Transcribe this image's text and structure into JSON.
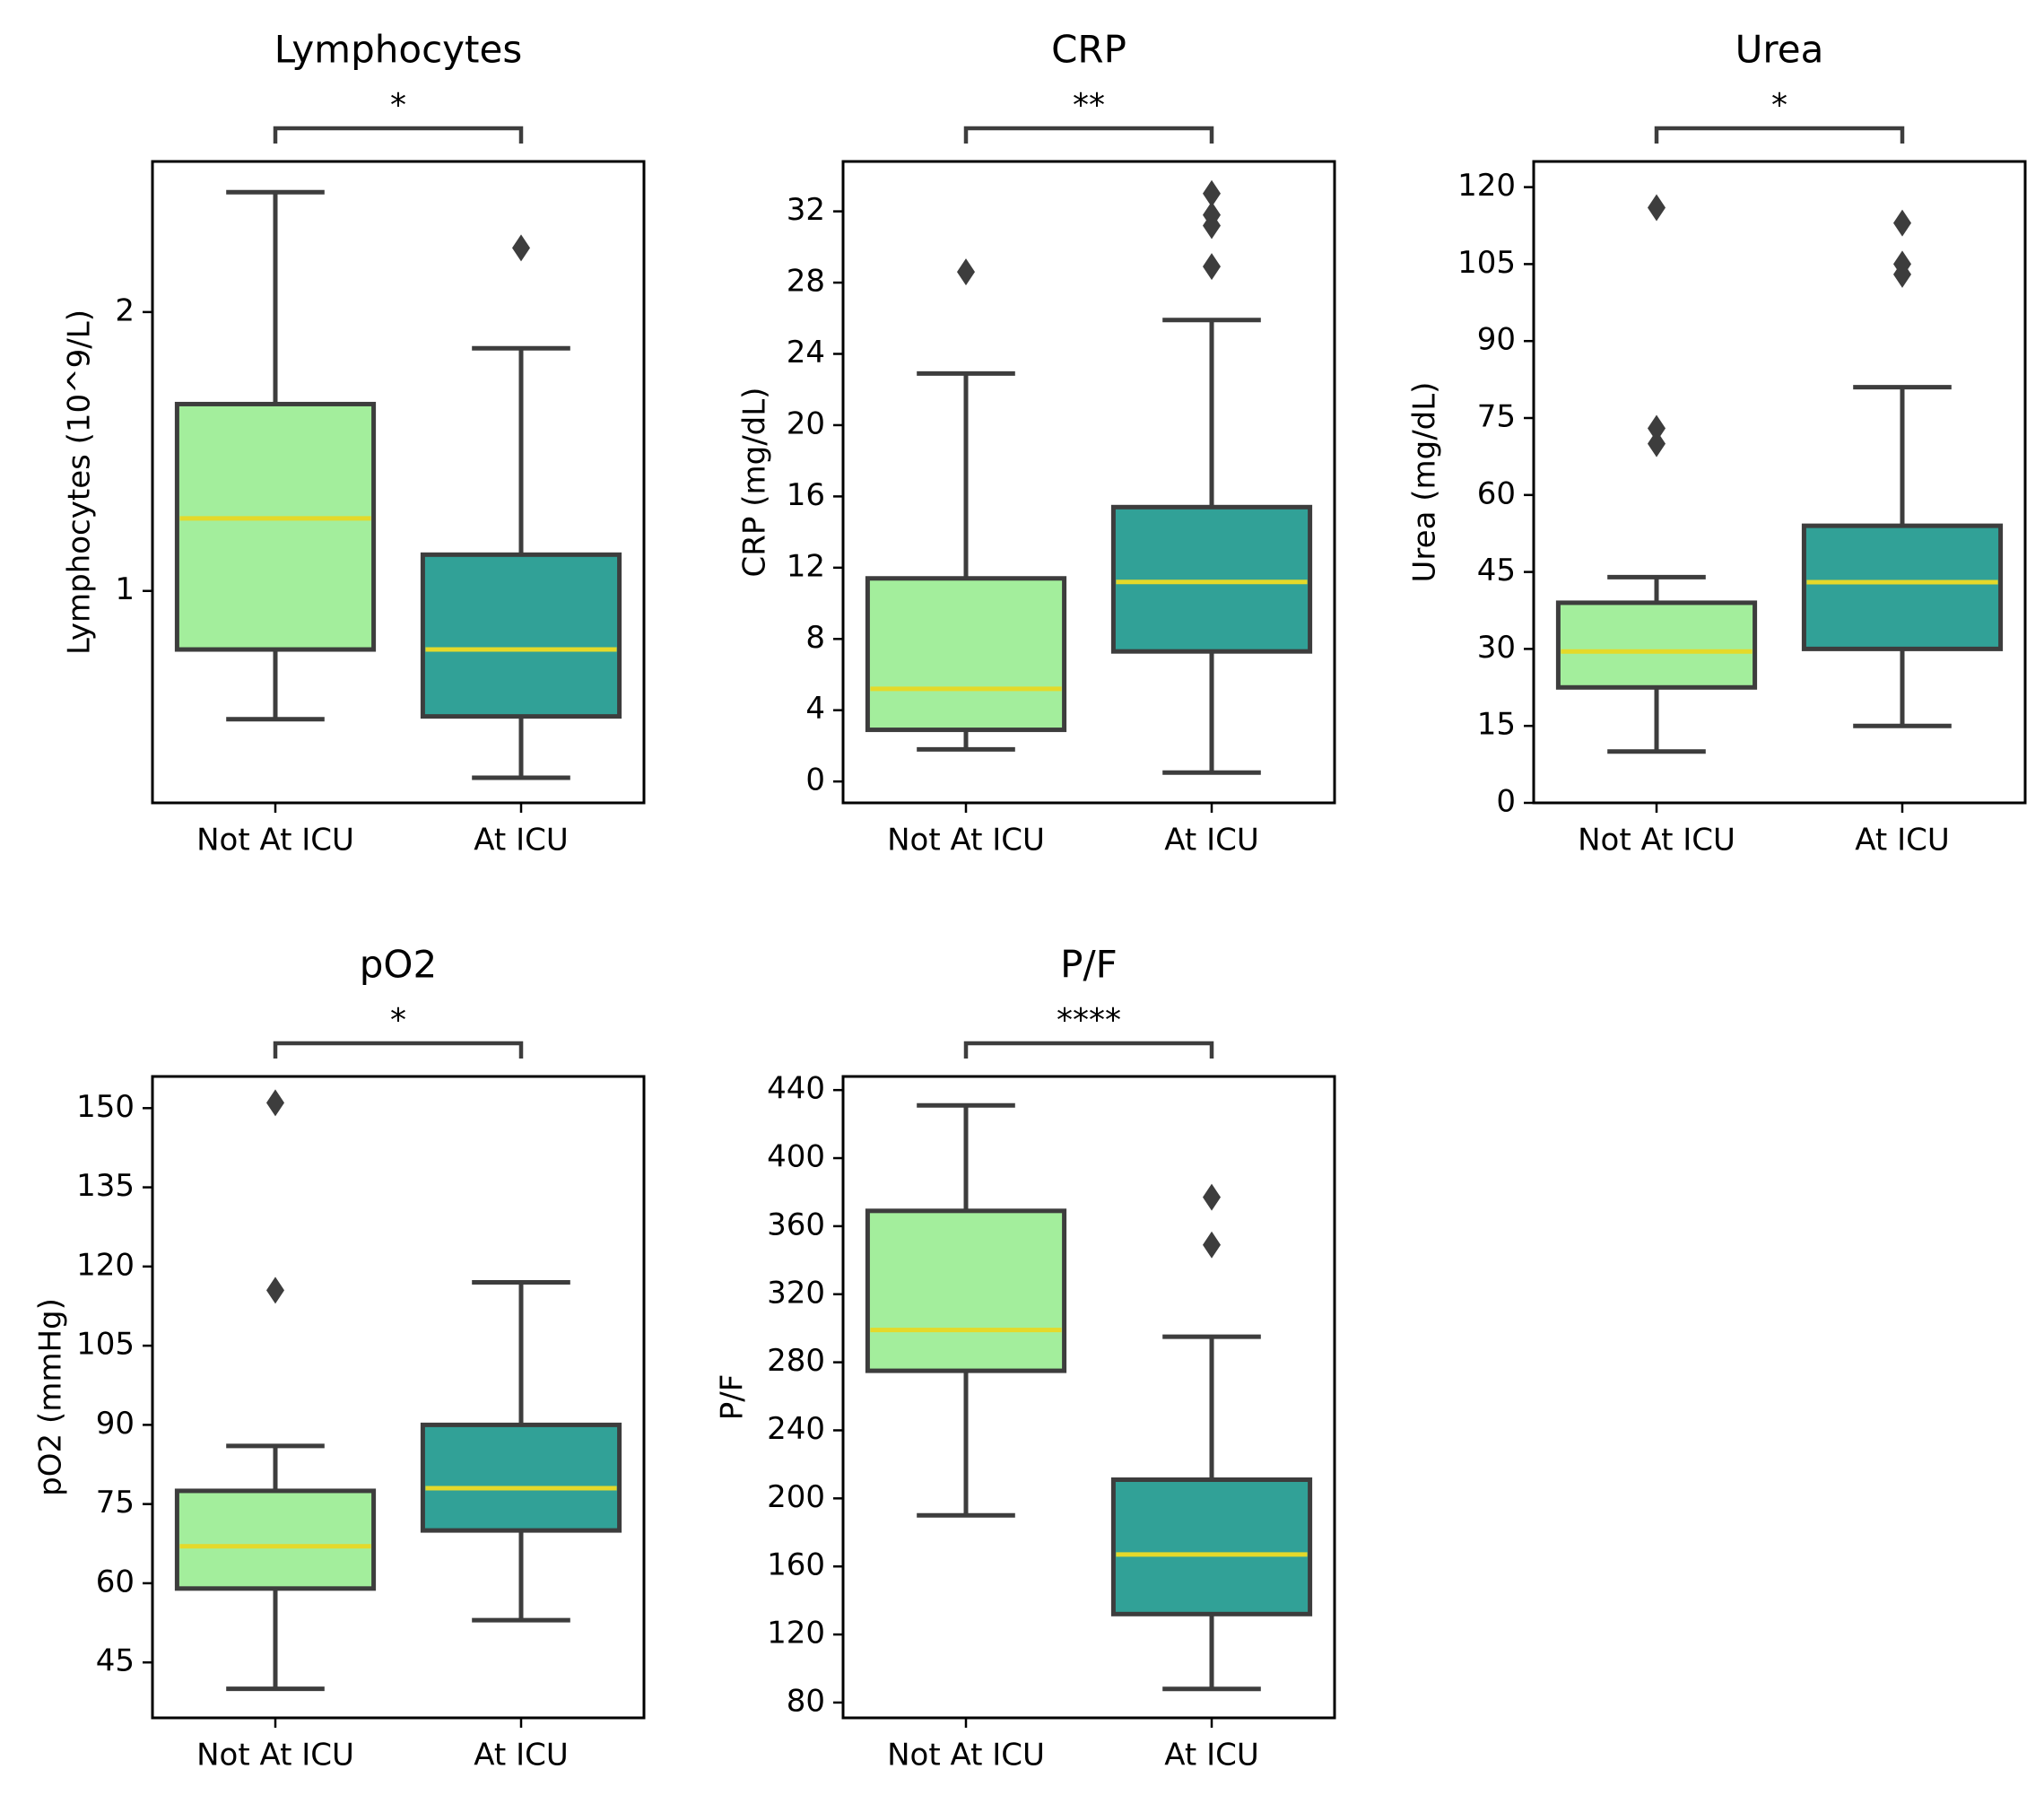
{
  "figure": {
    "colors": {
      "not_icu_box": "#a3ee9c",
      "icu_box": "#31a197",
      "median": "#e4d92a",
      "lines": "#3d3d3d"
    }
  },
  "chart_data": [
    {
      "type": "box",
      "title": "Lymphocytes",
      "ylabel": "Lymphocytes (10^9/L)",
      "xlabel": "",
      "categories": [
        "Not At ICU",
        "At ICU"
      ],
      "ylim": [
        0.24,
        2.54
      ],
      "yticks": [
        1,
        2
      ],
      "significance": "*",
      "boxes": [
        {
          "group": "Not At ICU",
          "whisker_low": 0.54,
          "q1": 0.79,
          "median": 1.26,
          "q3": 1.67,
          "whisker_high": 2.43,
          "outliers": []
        },
        {
          "group": "At ICU",
          "whisker_low": 0.33,
          "q1": 0.55,
          "median": 0.79,
          "q3": 1.13,
          "whisker_high": 1.87,
          "outliers": [
            2.23
          ]
        }
      ]
    },
    {
      "type": "box",
      "title": "CRP",
      "ylabel": "CRP (mg/dL)",
      "xlabel": "",
      "categories": [
        "Not At ICU",
        "At ICU"
      ],
      "ylim": [
        -1.2,
        34.8
      ],
      "yticks": [
        0,
        4,
        8,
        12,
        16,
        20,
        24,
        28,
        32
      ],
      "significance": "**",
      "boxes": [
        {
          "group": "Not At ICU",
          "whisker_low": 1.8,
          "q1": 2.9,
          "median": 5.2,
          "q3": 11.4,
          "whisker_high": 22.9,
          "outliers": [
            28.6
          ]
        },
        {
          "group": "At ICU",
          "whisker_low": 0.5,
          "q1": 7.3,
          "median": 11.2,
          "q3": 15.4,
          "whisker_high": 25.9,
          "outliers": [
            28.9,
            31.2,
            31.8,
            33.0
          ]
        }
      ]
    },
    {
      "type": "box",
      "title": "Urea",
      "ylabel": "Urea (mg/dL)",
      "xlabel": "",
      "categories": [
        "Not At ICU",
        "At ICU"
      ],
      "ylim": [
        0,
        125
      ],
      "yticks": [
        0,
        15,
        30,
        45,
        60,
        75,
        90,
        105,
        120
      ],
      "significance": "*",
      "boxes": [
        {
          "group": "Not At ICU",
          "whisker_low": 10,
          "q1": 22.5,
          "median": 29.5,
          "q3": 39,
          "whisker_high": 44,
          "outliers": [
            70,
            73,
            116
          ]
        },
        {
          "group": "At ICU",
          "whisker_low": 15,
          "q1": 30,
          "median": 43,
          "q3": 54,
          "whisker_high": 81,
          "outliers": [
            103,
            105,
            113
          ]
        }
      ]
    },
    {
      "type": "box",
      "title": "pO2",
      "ylabel": "pO2 (mmHg)",
      "xlabel": "",
      "categories": [
        "Not At ICU",
        "At ICU"
      ],
      "ylim": [
        34.5,
        156
      ],
      "yticks": [
        45,
        60,
        75,
        90,
        105,
        120,
        135,
        150
      ],
      "significance": "*",
      "boxes": [
        {
          "group": "Not At ICU",
          "whisker_low": 40,
          "q1": 59,
          "median": 67,
          "q3": 77.5,
          "whisker_high": 86,
          "outliers": [
            115.5,
            151
          ]
        },
        {
          "group": "At ICU",
          "whisker_low": 53,
          "q1": 70,
          "median": 78,
          "q3": 90,
          "whisker_high": 117,
          "outliers": []
        }
      ]
    },
    {
      "type": "box",
      "title": "P/F",
      "ylabel": "P/F",
      "xlabel": "",
      "categories": [
        "Not At ICU",
        "At ICU"
      ],
      "ylim": [
        71,
        448
      ],
      "yticks": [
        80,
        120,
        160,
        200,
        240,
        280,
        320,
        360,
        400,
        440
      ],
      "significance": "****",
      "boxes": [
        {
          "group": "Not At ICU",
          "whisker_low": 190,
          "q1": 275,
          "median": 299,
          "q3": 369,
          "whisker_high": 431,
          "outliers": []
        },
        {
          "group": "At ICU",
          "whisker_low": 88,
          "q1": 132,
          "median": 167,
          "q3": 211,
          "whisker_high": 295,
          "outliers": [
            349,
            377
          ]
        }
      ]
    }
  ]
}
